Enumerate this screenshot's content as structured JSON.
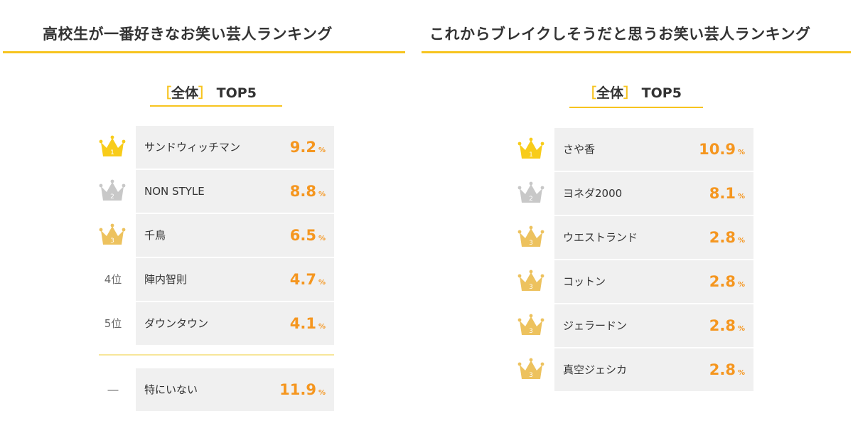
{
  "left": {
    "title": "高校生が一番好きなお笑い芸人ランキング",
    "subtitle_open": "［",
    "subtitle_label": "全体",
    "subtitle_close": "］",
    "subtitle_suffix": "TOP5",
    "percent_sign": "%",
    "rows": [
      {
        "rank": 1,
        "rank_label": "",
        "crown": "gold",
        "name": "サンドウィッチマン",
        "value": "9.2"
      },
      {
        "rank": 2,
        "rank_label": "",
        "crown": "silver",
        "name": "NON STYLE",
        "value": "8.8"
      },
      {
        "rank": 3,
        "rank_label": "",
        "crown": "bronze",
        "name": "千鳥",
        "value": "6.5"
      },
      {
        "rank": 4,
        "rank_label": "4位",
        "crown": "none",
        "name": "陣内智則",
        "value": "4.7"
      },
      {
        "rank": 5,
        "rank_label": "5位",
        "crown": "none",
        "name": "ダウンタウン",
        "value": "4.1"
      }
    ],
    "extra_row": {
      "rank_label": "―",
      "name": "特にいない",
      "value": "11.9"
    }
  },
  "right": {
    "title": "これからブレイクしそうだと思うお笑い芸人ランキング",
    "subtitle_open": "［",
    "subtitle_label": "全体",
    "subtitle_close": "］",
    "subtitle_suffix": "TOP5",
    "percent_sign": "%",
    "rows": [
      {
        "rank": 1,
        "crown": "gold",
        "name": "さや香",
        "value": "10.9"
      },
      {
        "rank": 2,
        "crown": "silver",
        "name": "ヨネダ2000",
        "value": "8.1"
      },
      {
        "rank": 3,
        "crown": "bronze",
        "name": "ウエストランド",
        "value": "2.8"
      },
      {
        "rank": 3,
        "crown": "bronze",
        "name": "コットン",
        "value": "2.8"
      },
      {
        "rank": 3,
        "crown": "bronze",
        "name": "ジェラードン",
        "value": "2.8"
      },
      {
        "rank": 3,
        "crown": "bronze",
        "name": "真空ジェシカ",
        "value": "2.8"
      }
    ]
  },
  "colors": {
    "accent_yellow": "#f7c41f",
    "value_orange": "#f5961f",
    "crown_gold": "#f8cc1a",
    "crown_silver": "#c8c8c8",
    "crown_bronze": "#edc25e",
    "row_bg": "#f0f0f0"
  },
  "chart_data": [
    {
      "type": "table",
      "title": "高校生が一番好きなお笑い芸人ランキング",
      "subtitle": "［全体］TOP5",
      "categories": [
        "サンドウィッチマン",
        "NON STYLE",
        "千鳥",
        "陣内智則",
        "ダウンタウン",
        "特にいない"
      ],
      "values": [
        9.2,
        8.8,
        6.5,
        4.7,
        4.1,
        11.9
      ],
      "unit": "%"
    },
    {
      "type": "table",
      "title": "これからブレイクしそうだと思うお笑い芸人ランキング",
      "subtitle": "［全体］TOP5",
      "categories": [
        "さや香",
        "ヨネダ2000",
        "ウエストランド",
        "コットン",
        "ジェラードン",
        "真空ジェシカ"
      ],
      "values": [
        10.9,
        8.1,
        2.8,
        2.8,
        2.8,
        2.8
      ],
      "unit": "%"
    }
  ]
}
